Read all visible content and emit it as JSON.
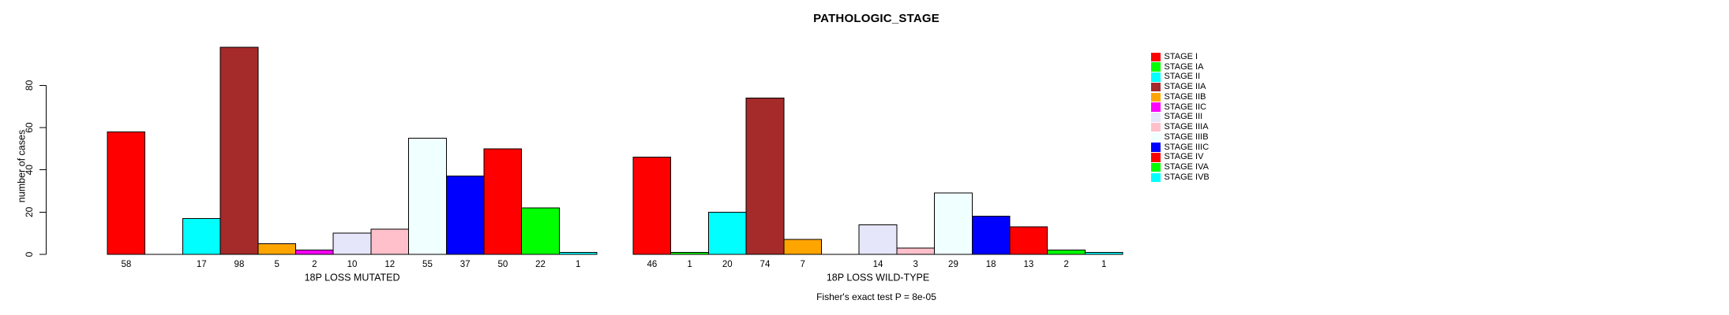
{
  "title": "PATHOLOGIC_STAGE",
  "footer": "Fisher's exact test P = 8e-05",
  "legend": [
    {
      "label": "STAGE I",
      "color": "#FF0000"
    },
    {
      "label": "STAGE IA",
      "color": "#00FF00"
    },
    {
      "label": "STAGE II",
      "color": "#00FFFF"
    },
    {
      "label": "STAGE IIA",
      "color": "#A52A2A"
    },
    {
      "label": "STAGE IIB",
      "color": "#FFA500"
    },
    {
      "label": "STAGE IIC",
      "color": "#FF00FF"
    },
    {
      "label": "STAGE III",
      "color": "#E6E6FA"
    },
    {
      "label": "STAGE IIIA",
      "color": "#FFC0CB"
    },
    {
      "label": "STAGE IIIB",
      "color": "#F0FFFF"
    },
    {
      "label": "STAGE IIIC",
      "color": "#0000FF"
    },
    {
      "label": "STAGE IV",
      "color": "#FF0000"
    },
    {
      "label": "STAGE IVA",
      "color": "#00FF00"
    },
    {
      "label": "STAGE IVB",
      "color": "#00FFFF"
    }
  ],
  "chart_data": {
    "type": "bar",
    "title": "PATHOLOGIC_STAGE",
    "ylabel": "number of cases",
    "yticks": [
      0,
      20,
      40,
      60,
      80
    ],
    "ylim": [
      0,
      98
    ],
    "grid": false,
    "legend_position": "right",
    "categories": [
      "STAGE I",
      "STAGE IA",
      "STAGE II",
      "STAGE IIA",
      "STAGE IIB",
      "STAGE IIC",
      "STAGE III",
      "STAGE IIIA",
      "STAGE IIIB",
      "STAGE IIIC",
      "STAGE IV",
      "STAGE IVA",
      "STAGE IVB"
    ],
    "colors": [
      "#FF0000",
      "#00FF00",
      "#00FFFF",
      "#A52A2A",
      "#FFA500",
      "#FF00FF",
      "#E6E6FA",
      "#FFC0CB",
      "#F0FFFF",
      "#0000FF",
      "#FF0000",
      "#00FF00",
      "#00FFFF"
    ],
    "series": [
      {
        "name": "18P LOSS MUTATED",
        "values": [
          58,
          null,
          17,
          98,
          5,
          2,
          10,
          12,
          55,
          37,
          50,
          22,
          1
        ]
      },
      {
        "name": "18P LOSS WILD-TYPE",
        "values": [
          46,
          1,
          20,
          74,
          7,
          null,
          14,
          3,
          29,
          18,
          13,
          2,
          1
        ]
      }
    ],
    "annotation": "Fisher's exact test P = 8e-05"
  }
}
